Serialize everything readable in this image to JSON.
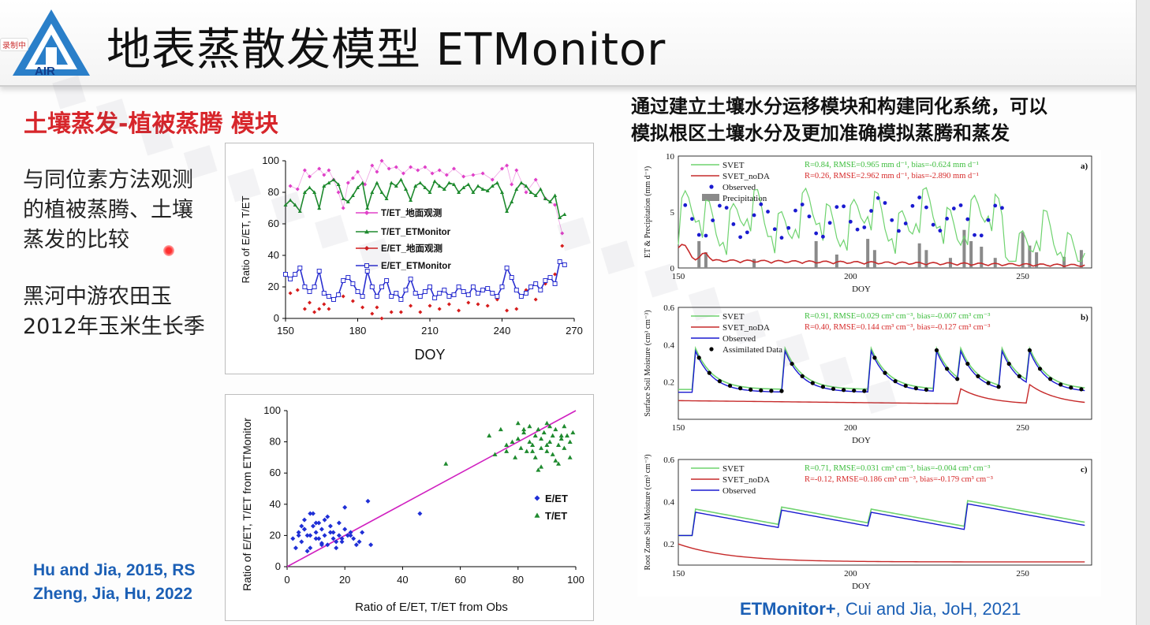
{
  "slide": {
    "title": "地表蒸散发模型 ETMonitor",
    "logo_text": "AIR",
    "recording_badge": "录制中",
    "module_title": "土壤蒸发-植被蒸腾 模块",
    "left_text": [
      "与同位素方法观测",
      "的植被蒸腾、土壤",
      "蒸发的比较",
      "黑河中游农田玉",
      "2012年玉米生长季"
    ],
    "right_description": [
      "通过建立土壤水分运移模块和构建同化系统，可以",
      "模拟根区土壤水分及更加准确模拟蒸腾和蒸发"
    ],
    "references": {
      "left_1": "Hu and Jia, 2015, RS",
      "left_2": "Zheng, Jia, Hu, 2022",
      "right_bold": "ETMonitor+",
      "right_rest": ", Cui and Jia, JoH, 2021"
    }
  },
  "chart_data": [
    {
      "type": "line",
      "xlabel": "DOY",
      "ylabel": "Ratio of E/ET, T/ET",
      "xlim": [
        150,
        270
      ],
      "ylim": [
        0,
        100
      ],
      "xticks": [
        150,
        180,
        210,
        240,
        270
      ],
      "yticks": [
        0,
        20,
        40,
        60,
        80,
        100
      ],
      "legend": "upper-center",
      "series": [
        {
          "name": "T/ET_地面观测",
          "color": "#e040c8",
          "marker": "diamond",
          "x": [
            152,
            155,
            158,
            160,
            164,
            166,
            168,
            170,
            172,
            174,
            176,
            178,
            180,
            183,
            186,
            188,
            190,
            193,
            196,
            199,
            202,
            205,
            208,
            211,
            214,
            217,
            220,
            224,
            228,
            232,
            236,
            240,
            242,
            244,
            246,
            250,
            254,
            258,
            262,
            265
          ],
          "y": [
            84,
            82,
            94,
            90,
            95,
            91,
            94,
            88,
            80,
            70,
            86,
            89,
            93,
            85,
            97,
            93,
            100,
            95,
            96,
            92,
            96,
            94,
            96,
            92,
            94,
            91,
            95,
            90,
            91,
            92,
            88,
            95,
            97,
            85,
            94,
            80,
            88,
            76,
            72,
            54
          ]
        },
        {
          "name": "T/ET_ETMonitor",
          "color": "#1e8a2e",
          "marker": "triangle",
          "x": [
            150,
            152,
            154,
            156,
            158,
            160,
            162,
            164,
            166,
            168,
            170,
            172,
            174,
            176,
            178,
            180,
            182,
            184,
            186,
            188,
            190,
            192,
            194,
            196,
            198,
            200,
            202,
            204,
            206,
            208,
            210,
            212,
            214,
            216,
            218,
            220,
            222,
            224,
            226,
            228,
            230,
            232,
            234,
            236,
            238,
            240,
            242,
            244,
            246,
            248,
            250,
            252,
            254,
            256,
            258,
            260,
            262,
            264,
            266
          ],
          "y": [
            72,
            75,
            72,
            68,
            80,
            83,
            80,
            70,
            84,
            86,
            88,
            85,
            76,
            74,
            78,
            83,
            86,
            70,
            80,
            86,
            80,
            76,
            86,
            84,
            88,
            82,
            75,
            84,
            86,
            83,
            80,
            87,
            84,
            82,
            86,
            85,
            80,
            83,
            85,
            80,
            84,
            82,
            81,
            84,
            86,
            80,
            68,
            74,
            82,
            86,
            84,
            80,
            78,
            82,
            76,
            74,
            78,
            64,
            66
          ]
        },
        {
          "name": "E/ET_地面观测",
          "color": "#d61c1c",
          "marker": "diamond",
          "x": [
            152,
            155,
            158,
            160,
            162,
            164,
            166,
            168,
            170,
            174,
            178,
            182,
            186,
            188,
            190,
            194,
            198,
            202,
            206,
            210,
            214,
            218,
            222,
            226,
            230,
            234,
            238,
            242,
            246,
            250,
            254,
            258,
            262,
            265
          ],
          "y": [
            16,
            18,
            6,
            10,
            4,
            6,
            9,
            6,
            12,
            14,
            11,
            7,
            3,
            7,
            0,
            4,
            4,
            8,
            4,
            8,
            6,
            9,
            5,
            10,
            9,
            8,
            12,
            5,
            6,
            18,
            12,
            22,
            28,
            46
          ]
        },
        {
          "name": "E/ET_ETMonitor",
          "color": "#2a2fd0",
          "marker": "square",
          "x": [
            150,
            152,
            154,
            156,
            158,
            160,
            162,
            164,
            166,
            168,
            170,
            172,
            174,
            176,
            178,
            180,
            182,
            184,
            186,
            188,
            190,
            192,
            194,
            196,
            198,
            200,
            202,
            204,
            206,
            208,
            210,
            212,
            214,
            216,
            218,
            220,
            222,
            224,
            226,
            228,
            230,
            232,
            234,
            236,
            238,
            240,
            242,
            244,
            246,
            248,
            250,
            252,
            254,
            256,
            258,
            260,
            262,
            264,
            266
          ],
          "y": [
            28,
            25,
            28,
            32,
            20,
            17,
            20,
            30,
            16,
            14,
            12,
            15,
            24,
            26,
            22,
            17,
            14,
            30,
            20,
            14,
            20,
            24,
            14,
            16,
            12,
            18,
            25,
            16,
            14,
            17,
            20,
            13,
            16,
            18,
            14,
            15,
            20,
            17,
            15,
            20,
            16,
            18,
            19,
            16,
            14,
            20,
            32,
            26,
            18,
            14,
            16,
            20,
            22,
            18,
            24,
            26,
            22,
            36,
            34
          ]
        }
      ]
    },
    {
      "type": "scatter",
      "xlabel": "Ratio of E/ET, T/ET from Obs",
      "ylabel": "Ratio of E/ET, T/ET from ETMonitor",
      "xlim": [
        0,
        100
      ],
      "ylim": [
        0,
        100
      ],
      "xticks": [
        0,
        20,
        40,
        60,
        80,
        100
      ],
      "yticks": [
        0,
        20,
        40,
        60,
        80,
        100
      ],
      "legend": "right",
      "one_to_one_line": true,
      "series": [
        {
          "name": "E/ET",
          "color": "#1f2fd6",
          "marker": "diamond",
          "x": [
            2,
            4,
            5,
            6,
            6,
            7,
            8,
            8,
            9,
            10,
            10,
            11,
            12,
            12,
            13,
            14,
            14,
            15,
            16,
            16,
            17,
            18,
            18,
            19,
            20,
            20,
            21,
            22,
            23,
            24,
            25,
            26,
            28,
            29,
            5,
            7,
            9,
            11,
            13,
            3,
            8,
            15,
            19,
            12,
            6,
            10,
            17,
            22,
            46,
            4
          ],
          "y": [
            18,
            22,
            16,
            24,
            30,
            20,
            34,
            12,
            26,
            22,
            18,
            28,
            15,
            24,
            20,
            32,
            14,
            26,
            18,
            22,
            12,
            28,
            20,
            16,
            24,
            38,
            20,
            22,
            18,
            14,
            16,
            22,
            42,
            14,
            26,
            10,
            34,
            18,
            30,
            12,
            20,
            22,
            18,
            14,
            24,
            28,
            16,
            20,
            34,
            20
          ]
        },
        {
          "name": "T/ET",
          "color": "#1e8a2e",
          "marker": "triangle",
          "x": [
            55,
            70,
            72,
            74,
            76,
            78,
            79,
            80,
            81,
            82,
            83,
            84,
            84,
            85,
            86,
            86,
            87,
            88,
            88,
            89,
            90,
            90,
            91,
            92,
            92,
            93,
            94,
            94,
            95,
            96,
            96,
            97,
            98,
            98,
            99,
            80,
            85,
            88,
            91,
            93,
            76,
            82,
            87,
            90,
            95
          ],
          "y": [
            66,
            84,
            72,
            88,
            78,
            80,
            70,
            82,
            76,
            88,
            74,
            80,
            90,
            78,
            84,
            70,
            88,
            76,
            82,
            86,
            74,
            92,
            80,
            84,
            72,
            88,
            78,
            66,
            82,
            90,
            76,
            84,
            80,
            70,
            86,
            92,
            74,
            64,
            90,
            68,
            74,
            86,
            62,
            78,
            84
          ]
        }
      ]
    },
    {
      "type": "line",
      "panel_label": "a)",
      "xlabel": "DOY",
      "ylabel": "ET & Precipitation (mm d⁻¹)",
      "xlim": [
        150,
        270
      ],
      "ylim": [
        0,
        10
      ],
      "xticks": [
        150,
        200,
        250
      ],
      "yticks": [
        0,
        5,
        10
      ],
      "legend": "top-left",
      "series": [
        {
          "name": "SVET",
          "color": "#6fd36f"
        },
        {
          "name": "SVET_noDA",
          "color": "#c62a2a"
        },
        {
          "name": "Observed",
          "color": "#1a1ad0",
          "marker": "circle"
        },
        {
          "name": "Precipitation",
          "color": "#8a8a8a",
          "marker": "bar"
        }
      ],
      "stats": [
        {
          "text": "R=0.84, RMSE=0.965 mm d⁻¹, bias=-0.624 mm d⁻¹",
          "color": "#3dbd3d"
        },
        {
          "text": "R=0.26, RMSE=2.962 mm d⁻¹, bias=-2.890 mm d⁻¹",
          "color": "#d62a2a"
        }
      ]
    },
    {
      "type": "line",
      "panel_label": "b)",
      "xlabel": "DOY",
      "ylabel": "Surface Soil Moisture (cm³ cm⁻³)",
      "xlim": [
        150,
        270
      ],
      "ylim": [
        0,
        0.6
      ],
      "xticks": [
        150,
        200,
        250
      ],
      "yticks": [
        0.2,
        0.4,
        0.6
      ],
      "legend": "top-left",
      "series": [
        {
          "name": "SVET",
          "color": "#6fd36f"
        },
        {
          "name": "SVET_noDA",
          "color": "#c62a2a"
        },
        {
          "name": "Observed",
          "color": "#1a1ad0"
        },
        {
          "name": "Assimilated Data",
          "color": "#000000",
          "marker": "circle"
        }
      ],
      "stats": [
        {
          "text": "R=0.91, RMSE=0.029 cm³ cm⁻³, bias=-0.007 cm³ cm⁻³",
          "color": "#3dbd3d"
        },
        {
          "text": "R=0.40, RMSE=0.144 cm³ cm⁻³, bias=-0.127 cm³ cm⁻³",
          "color": "#d62a2a"
        }
      ]
    },
    {
      "type": "line",
      "panel_label": "c)",
      "xlabel": "DOY",
      "ylabel": "Root Zone Soil Moisture (cm³ cm⁻³)",
      "xlim": [
        150,
        270
      ],
      "ylim": [
        0.1,
        0.6
      ],
      "xticks": [
        150,
        200,
        250
      ],
      "yticks": [
        0.2,
        0.4,
        0.6
      ],
      "legend": "top-left",
      "series": [
        {
          "name": "SVET",
          "color": "#6fd36f"
        },
        {
          "name": "SVET_noDA",
          "color": "#c62a2a"
        },
        {
          "name": "Observed",
          "color": "#1a1ad0"
        }
      ],
      "stats": [
        {
          "text": "R=0.71, RMSE=0.031 cm³ cm⁻³, bias=-0.004 cm³ cm⁻³",
          "color": "#3dbd3d"
        },
        {
          "text": "R=-0.12, RMSE=0.186 cm³ cm⁻³, bias=-0.179 cm³ cm⁻³",
          "color": "#d62a2a"
        }
      ]
    }
  ]
}
